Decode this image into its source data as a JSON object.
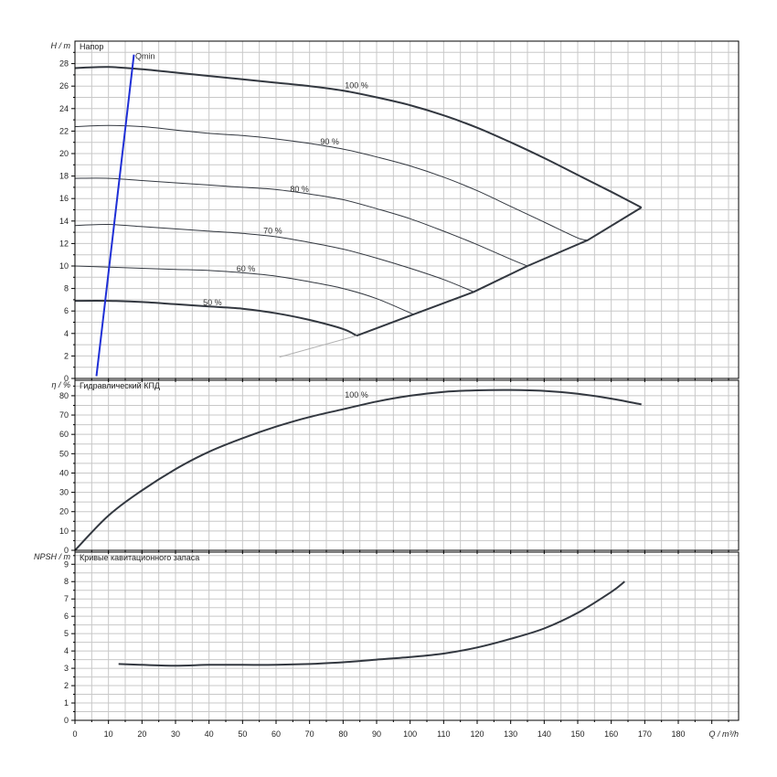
{
  "chart_data": [
    {
      "type": "line",
      "title": "Напор",
      "ylabel": "H / m",
      "xlabel": "Q / m³/h",
      "xlim": [
        0,
        198
      ],
      "ylim": [
        0,
        30
      ],
      "grid": true,
      "y_ticks": [
        0,
        2,
        4,
        6,
        8,
        10,
        12,
        14,
        16,
        18,
        20,
        22,
        24,
        26,
        28
      ],
      "series": [
        {
          "name": "100 %",
          "role": "main",
          "x": [
            0,
            10,
            20,
            30,
            40,
            50,
            60,
            70,
            80,
            90,
            100,
            110,
            120,
            130,
            140,
            150,
            160,
            169
          ],
          "y": [
            27.6,
            27.7,
            27.5,
            27.2,
            26.9,
            26.6,
            26.3,
            26.0,
            25.6,
            25.0,
            24.3,
            23.4,
            22.3,
            21.0,
            19.6,
            18.1,
            16.6,
            15.2
          ]
        },
        {
          "name": "90 %",
          "role": "partial",
          "x": [
            0,
            10,
            20,
            30,
            40,
            50,
            60,
            70,
            80,
            90,
            100,
            110,
            120,
            130,
            140,
            150,
            153
          ],
          "y": [
            22.4,
            22.5,
            22.4,
            22.1,
            21.8,
            21.6,
            21.3,
            20.9,
            20.4,
            19.7,
            18.9,
            17.9,
            16.7,
            15.3,
            13.9,
            12.5,
            12.3
          ]
        },
        {
          "name": "80 %",
          "role": "partial",
          "x": [
            0,
            10,
            20,
            30,
            40,
            50,
            60,
            70,
            80,
            90,
            100,
            110,
            120,
            130,
            135
          ],
          "y": [
            17.8,
            17.8,
            17.6,
            17.4,
            17.2,
            17.0,
            16.8,
            16.4,
            15.9,
            15.1,
            14.2,
            13.1,
            11.9,
            10.6,
            10.0
          ]
        },
        {
          "name": "70 %",
          "role": "partial",
          "x": [
            0,
            10,
            20,
            30,
            40,
            50,
            60,
            70,
            80,
            90,
            100,
            110,
            119
          ],
          "y": [
            13.6,
            13.7,
            13.5,
            13.3,
            13.1,
            12.9,
            12.6,
            12.1,
            11.5,
            10.7,
            9.8,
            8.8,
            7.7
          ]
        },
        {
          "name": "60 %",
          "role": "partial",
          "x": [
            0,
            10,
            20,
            30,
            40,
            50,
            60,
            70,
            80,
            90,
            101
          ],
          "y": [
            10.0,
            9.9,
            9.8,
            9.7,
            9.6,
            9.4,
            9.1,
            8.6,
            8.0,
            7.1,
            5.7
          ]
        },
        {
          "name": "50 %",
          "role": "main",
          "x": [
            0,
            10,
            20,
            30,
            40,
            50,
            60,
            70,
            80,
            84
          ],
          "y": [
            6.9,
            6.9,
            6.8,
            6.6,
            6.4,
            6.2,
            5.8,
            5.2,
            4.4,
            3.8
          ]
        },
        {
          "name": "",
          "role": "envelope",
          "x": [
            84,
            101,
            119,
            135,
            153,
            169
          ],
          "y": [
            3.8,
            5.7,
            7.7,
            10.0,
            12.3,
            15.2
          ]
        },
        {
          "name": "",
          "role": "thin",
          "x": [
            61,
            84
          ],
          "y": [
            1.9,
            3.8
          ]
        },
        {
          "name": "Qmin",
          "role": "qmin",
          "x": [
            6.4,
            17.6
          ],
          "y": [
            0.2,
            28.8
          ]
        }
      ],
      "labels": [
        {
          "text": "100 %",
          "x": 84,
          "y": 25.8
        },
        {
          "text": "90 %",
          "x": 76,
          "y": 20.8
        },
        {
          "text": "80 %",
          "x": 67,
          "y": 16.6
        },
        {
          "text": "70 %",
          "x": 59,
          "y": 12.9
        },
        {
          "text": "60 %",
          "x": 51,
          "y": 9.5
        },
        {
          "text": "50 %",
          "x": 41,
          "y": 6.5
        },
        {
          "text": "Qmin",
          "x": 18,
          "y": 28.4
        }
      ]
    },
    {
      "type": "line",
      "title": "Гидравлический КПД",
      "ylabel": "η / %",
      "xlabel": "Q / m³/h",
      "xlim": [
        0,
        198
      ],
      "ylim": [
        0,
        88
      ],
      "grid": true,
      "y_ticks": [
        0,
        10,
        20,
        30,
        40,
        50,
        60,
        70,
        80
      ],
      "series": [
        {
          "name": "100 %",
          "role": "main",
          "x": [
            0,
            10,
            20,
            30,
            40,
            50,
            60,
            70,
            80,
            90,
            100,
            110,
            120,
            130,
            140,
            150,
            160,
            169
          ],
          "y": [
            0,
            18,
            31,
            42,
            51,
            58,
            64,
            69,
            73,
            77,
            80,
            82,
            82.8,
            83,
            82.5,
            81,
            78.5,
            75.5
          ]
        }
      ],
      "labels": [
        {
          "text": "100 %",
          "x": 84,
          "y": 79
        }
      ]
    },
    {
      "type": "line",
      "title": "Кривые кавитационного запаса",
      "ylabel": "NPSH / m",
      "xlabel": "Q / m³/h",
      "xlim": [
        0,
        198
      ],
      "ylim": [
        0,
        9.7
      ],
      "grid": true,
      "y_ticks": [
        0,
        1,
        2,
        3,
        4,
        5,
        6,
        7,
        8,
        9
      ],
      "series": [
        {
          "name": "",
          "role": "main",
          "x": [
            13,
            20,
            30,
            40,
            50,
            60,
            70,
            80,
            90,
            100,
            110,
            120,
            130,
            140,
            150,
            160,
            164
          ],
          "y": [
            3.25,
            3.2,
            3.15,
            3.2,
            3.2,
            3.2,
            3.25,
            3.35,
            3.5,
            3.65,
            3.85,
            4.2,
            4.7,
            5.3,
            6.2,
            7.4,
            8.0
          ]
        }
      ],
      "labels": []
    }
  ],
  "x_ticks": [
    0,
    10,
    20,
    30,
    40,
    50,
    60,
    70,
    80,
    90,
    100,
    110,
    120,
    130,
    140,
    150,
    160,
    170,
    180
  ],
  "x_axis_label": "Q / m³/h",
  "colors": {
    "curve": "#333840",
    "qmin": "#1f2fd6",
    "grid": "#c8c8c8",
    "frame": "#000000",
    "thin": "#b0b0b0"
  }
}
